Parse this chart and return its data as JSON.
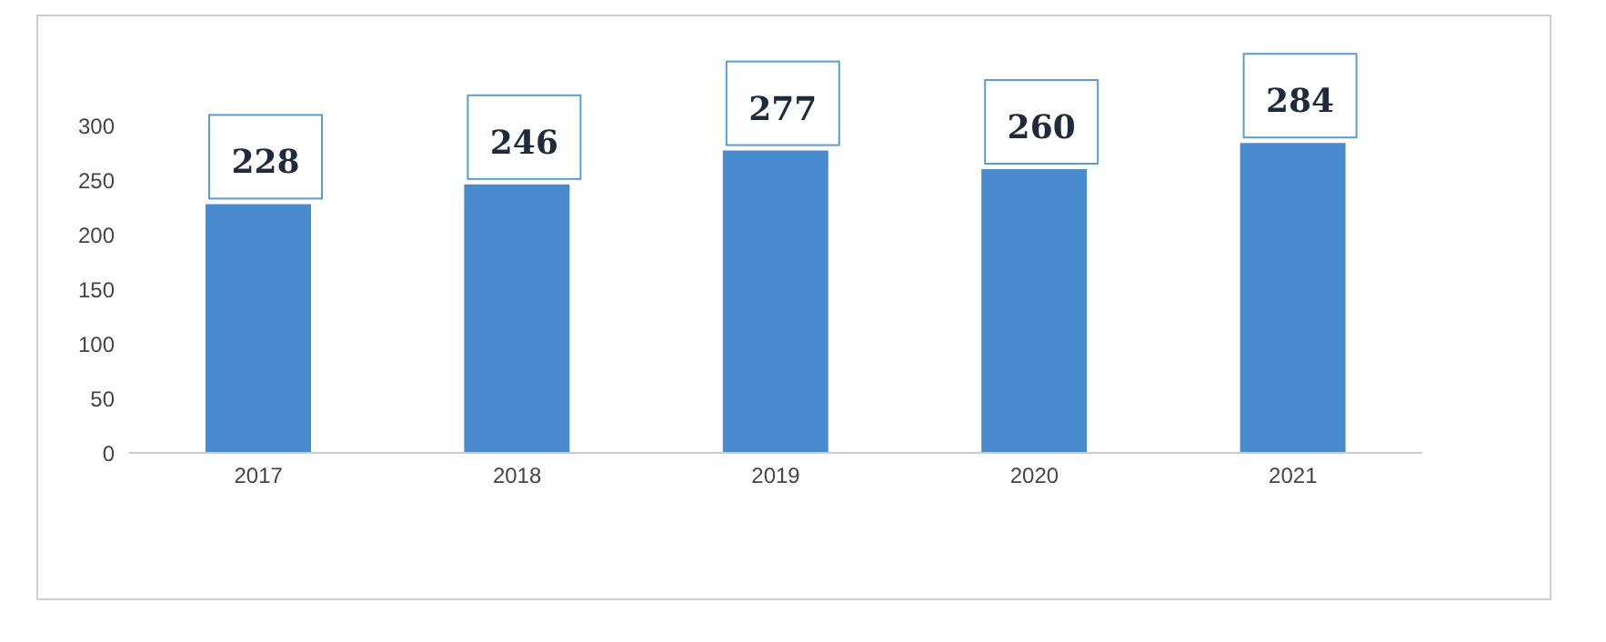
{
  "chart_data": {
    "type": "bar",
    "categories": [
      "2017",
      "2018",
      "2019",
      "2020",
      "2021"
    ],
    "values": [
      228,
      246,
      277,
      260,
      284
    ],
    "color": "#4a8bd0",
    "ylim": [
      0,
      300
    ],
    "yticks": [
      0,
      50,
      100,
      150,
      200,
      250,
      300
    ],
    "grid": false,
    "data_labels": true
  }
}
